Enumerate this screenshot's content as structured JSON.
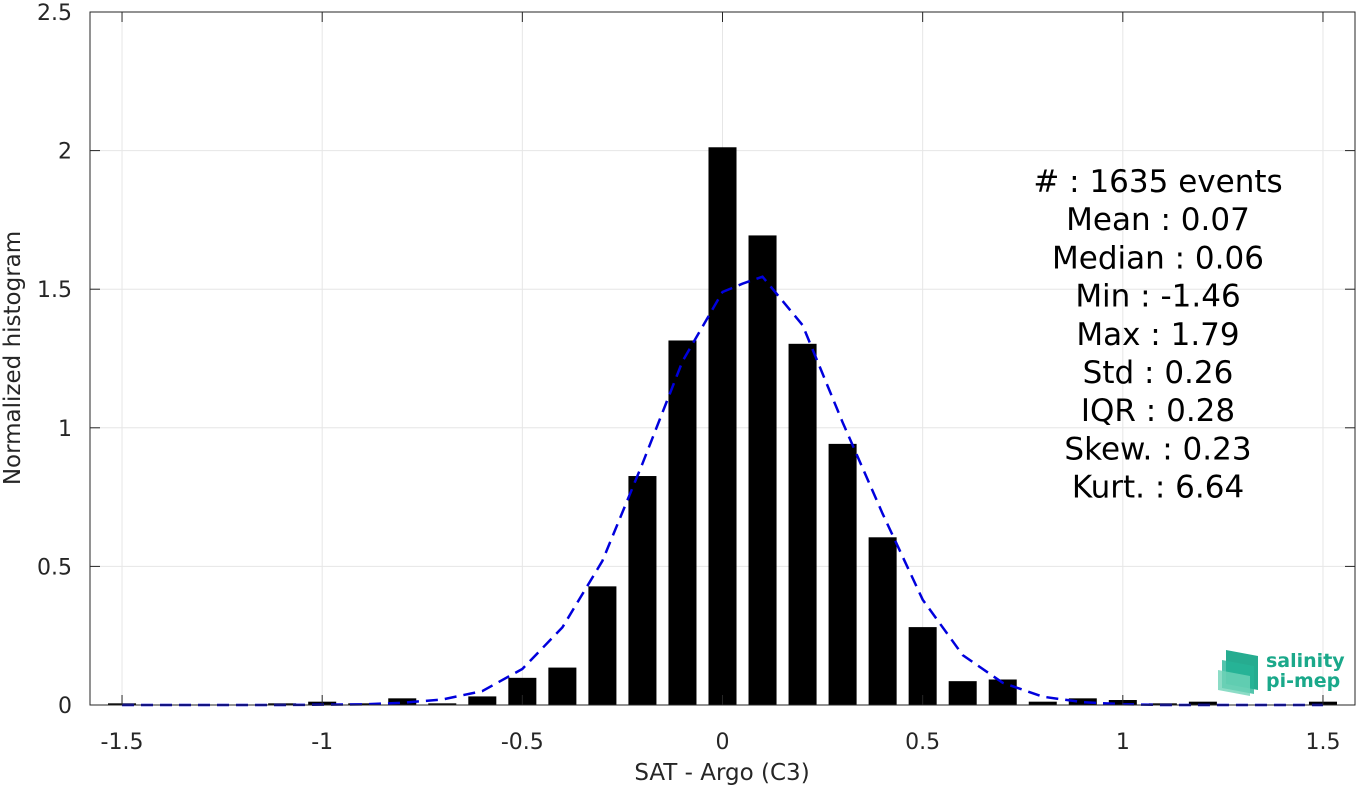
{
  "chart_data": {
    "type": "bar",
    "xlabel": "SAT - Argo (C3)",
    "ylabel": "Normalized histogram",
    "xlim": [
      -1.58,
      1.58
    ],
    "ylim": [
      0,
      2.5
    ],
    "xticks": [
      -1.5,
      -1,
      -0.5,
      0,
      0.5,
      1,
      1.5
    ],
    "xtick_labels": [
      "-1.5",
      "-1",
      "-0.5",
      "0",
      "0.5",
      "1",
      "1.5"
    ],
    "yticks": [
      0,
      0.5,
      1,
      1.5,
      2,
      2.5
    ],
    "ytick_labels": [
      "0",
      "0.5",
      "1",
      "1.5",
      "2",
      "2.5"
    ],
    "grid": true,
    "bar_width": 0.07,
    "bar_color": "#000000",
    "bars": {
      "x": [
        -1.5,
        -1.1,
        -1.0,
        -0.9,
        -0.8,
        -0.7,
        -0.6,
        -0.5,
        -0.4,
        -0.3,
        -0.2,
        -0.1,
        0.0,
        0.1,
        0.2,
        0.3,
        0.4,
        0.5,
        0.6,
        0.7,
        0.8,
        0.9,
        1.0,
        1.1,
        1.2,
        1.5
      ],
      "values": [
        0.006,
        0.006,
        0.012,
        0.006,
        0.024,
        0.006,
        0.031,
        0.098,
        0.135,
        0.428,
        0.826,
        1.315,
        2.012,
        1.694,
        1.303,
        0.942,
        0.605,
        0.281,
        0.086,
        0.092,
        0.012,
        0.024,
        0.018,
        0.006,
        0.012,
        0.012
      ]
    },
    "fit_curve": {
      "name": "Gaussian fit",
      "color": "#0000dd",
      "style": "dashed",
      "x": [
        -1.5,
        -1.3,
        -1.1,
        -0.9,
        -0.8,
        -0.7,
        -0.6,
        -0.5,
        -0.4,
        -0.3,
        -0.2,
        -0.1,
        0.0,
        0.05,
        0.1,
        0.2,
        0.3,
        0.4,
        0.5,
        0.6,
        0.7,
        0.8,
        0.9,
        1.0,
        1.1,
        1.3,
        1.5
      ],
      "y": [
        0.0,
        0.0,
        0.0,
        0.002,
        0.008,
        0.02,
        0.05,
        0.13,
        0.28,
        0.52,
        0.87,
        1.24,
        1.49,
        1.52,
        1.545,
        1.37,
        1.02,
        0.69,
        0.38,
        0.18,
        0.08,
        0.03,
        0.01,
        0.003,
        0.0,
        0.0,
        0.0
      ]
    }
  },
  "stats": [
    "#  : 1635 events",
    "Mean : 0.07",
    "Median : 0.06",
    "Min : -1.46",
    "Max : 1.79",
    "Std : 0.26",
    "IQR : 0.28",
    "Skew. : 0.23",
    "Kurt. : 6.64"
  ],
  "logo": {
    "line1": "salinity",
    "line2": "pi-mep",
    "color": "#1aa88a"
  }
}
